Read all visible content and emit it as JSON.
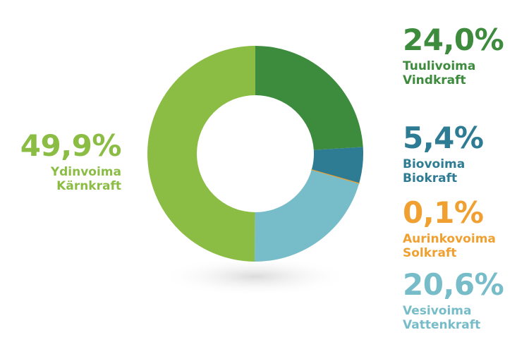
{
  "chart_data": {
    "type": "pie",
    "donut": true,
    "slices": [
      {
        "name_fi": "Tuulivoima",
        "name_sv": "Vindkraft",
        "value": 24.0,
        "label": "24,0%",
        "color": "#3d8b3d"
      },
      {
        "name_fi": "Biovoima",
        "name_sv": "Biokraft",
        "value": 5.4,
        "label": "5,4%",
        "color": "#2e7c93"
      },
      {
        "name_fi": "Aurinkovoima",
        "name_sv": "Solkraft",
        "value": 0.1,
        "label": "0,1%",
        "color": "#f0a030"
      },
      {
        "name_fi": "Vesivoima",
        "name_sv": "Vattenkraft",
        "value": 20.6,
        "label": "20,6%",
        "color": "#77bcc9"
      },
      {
        "name_fi": "Ydinvoima",
        "name_sv": "Kärnkraft",
        "value": 49.9,
        "label": "49,9%",
        "color": "#8bbd45"
      }
    ]
  }
}
